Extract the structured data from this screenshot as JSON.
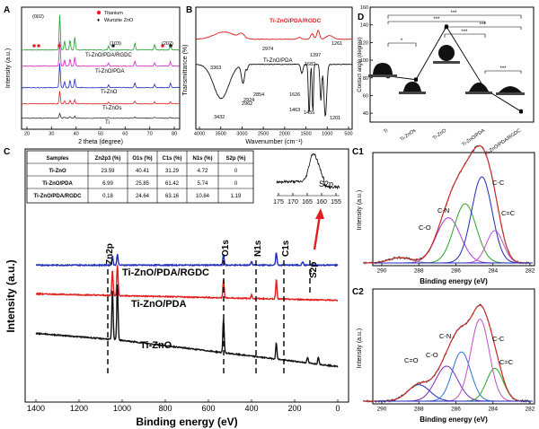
{
  "panels": {
    "A": {
      "label": "A",
      "xlabel": "2 theta (degree)",
      "ylabel": "Intensity (a.u.)",
      "xticks": [
        "20",
        "30",
        "40",
        "50",
        "60",
        "70",
        "80"
      ],
      "legend": [
        {
          "label": "Titanium",
          "color": "#e8212a"
        },
        {
          "label": "Wurtzite ZnO",
          "color": "#222222"
        }
      ],
      "peak_labels": [
        "(002)",
        "(103)",
        "(202)"
      ],
      "series": [
        {
          "name": "Ti-ZnO/PDA/RGDC",
          "color": "#1a9e2c"
        },
        {
          "name": "Ti-ZnO/PDA",
          "color": "#d31fc3"
        },
        {
          "name": "Ti-ZnO",
          "color": "#1c2bb8"
        },
        {
          "name": "Ti-ZnOs",
          "color": "#e01e1e"
        },
        {
          "name": "Ti",
          "color": "#333333"
        }
      ]
    },
    "B": {
      "label": "B",
      "xlabel": "Wavenumber (cm⁻¹)",
      "ylabel": "Transmittance (%)",
      "xticks": [
        "4000",
        "3500",
        "3000",
        "2500",
        "2000",
        "1500",
        "1000",
        "500"
      ],
      "series": [
        {
          "name": "Ti-ZnO/PDA/RGDC",
          "color": "#e01e1e"
        },
        {
          "name": "Ti-ZnO/PDA",
          "color": "#111111"
        }
      ],
      "peaks": [
        "3363",
        "2974",
        "1397",
        "1261",
        "1682",
        "3432",
        "2962",
        "2854",
        "2924",
        "1626",
        "1463",
        "1455",
        "1201"
      ]
    },
    "C": {
      "label": "C",
      "xlabel": "Binding energy (eV)",
      "ylabel": "Intensity (a.u.)",
      "xticks": [
        "1400",
        "1200",
        "1000",
        "800",
        "600",
        "400",
        "200",
        "0"
      ],
      "peak_labels": [
        "Zn2p",
        "O1s",
        "N1s",
        "C1s",
        "S2p"
      ],
      "series": [
        {
          "name": "Ti-ZnO/PDA/RGDC",
          "color": "#1c2bb8"
        },
        {
          "name": "Ti-ZnO/PDA",
          "color": "#e01e1e"
        },
        {
          "name": "Ti-ZnO",
          "color": "#111111"
        }
      ],
      "table": {
        "headers": [
          "Samples",
          "Zn2p3 (%)",
          "O1s (%)",
          "C1s (%)",
          "N1s (%)",
          "S2p (%)"
        ],
        "rows": [
          [
            "Ti-ZnO",
            "23.59",
            "40.41",
            "31.29",
            "4.72",
            "0"
          ],
          [
            "Ti-ZnO/PDA",
            "6.99",
            "25.85",
            "61.42",
            "5.74",
            "0"
          ],
          [
            "Ti-ZnO/PDA/RGDC",
            "0.18",
            "24.64",
            "63.16",
            "10.84",
            "1.19"
          ]
        ]
      },
      "inset": {
        "label": "S2p",
        "xticks": [
          "175",
          "170",
          "165",
          "160",
          "155"
        ]
      }
    },
    "D": {
      "label": "D",
      "ylabel": "Contact angle (degree)",
      "yticks": [
        "40",
        "60",
        "80",
        "100",
        "120",
        "140",
        "160"
      ],
      "categories": [
        "Ti",
        "Ti-ZnOs",
        "Ti-ZnO",
        "Ti-ZnO/PDA",
        "Ti-ZnO/PDA/RGDC"
      ],
      "significance": [
        "***",
        "***",
        "***",
        "***",
        "*",
        "***"
      ]
    },
    "C1": {
      "label": "C1",
      "xlabel": "Binding energy (eV)",
      "ylabel": "Intensity (a.u.)",
      "xticks": [
        "290",
        "288",
        "286",
        "284",
        "282"
      ],
      "components": [
        "C-O",
        "C-N",
        "C-C",
        "C=C"
      ]
    },
    "C2": {
      "label": "C2",
      "xlabel": "Binding energy (eV)",
      "ylabel": "Intensity (a.u.)",
      "xticks": [
        "290",
        "288",
        "286",
        "284",
        "282"
      ],
      "components": [
        "C=O",
        "C-O",
        "C-N",
        "C-C",
        "C=C"
      ]
    }
  },
  "chart_data": [
    {
      "type": "line",
      "title": "",
      "xlabel": "2 theta (degree)",
      "ylabel": "Intensity (a.u.)",
      "xlim": [
        20,
        80
      ],
      "series": [
        {
          "name": "Ti-ZnO/PDA/RGDC"
        },
        {
          "name": "Ti-ZnO/PDA"
        },
        {
          "name": "Ti-ZnO"
        },
        {
          "name": "Ti-ZnOs"
        },
        {
          "name": "Ti"
        }
      ]
    },
    {
      "type": "line",
      "title": "",
      "xlabel": "Wavenumber (cm⁻¹)",
      "ylabel": "Transmittance (%)",
      "xlim": [
        4000,
        500
      ],
      "series": [
        {
          "name": "Ti-ZnO/PDA/RGDC"
        },
        {
          "name": "Ti-ZnO/PDA"
        }
      ]
    },
    {
      "type": "scatter",
      "title": "",
      "ylabel": "Contact angle (degree)",
      "ylim": [
        30,
        160
      ],
      "categories": [
        "Ti",
        "Ti-ZnOs",
        "Ti-ZnO",
        "Ti-ZnO/PDA",
        "Ti-ZnO/PDA/RGDC"
      ],
      "values": [
        82,
        78,
        138,
        67,
        42
      ]
    },
    {
      "type": "line",
      "title": "",
      "xlabel": "Binding energy (eV)",
      "ylabel": "Intensity (a.u.)",
      "xlim": [
        1400,
        0
      ],
      "series": [
        {
          "name": "Ti-ZnO/PDA/RGDC"
        },
        {
          "name": "Ti-ZnO/PDA"
        },
        {
          "name": "Ti-ZnO"
        }
      ]
    },
    {
      "type": "line",
      "title": "",
      "xlabel": "Binding energy (eV)",
      "ylabel": "Intensity (a.u.)",
      "xlim": [
        291,
        282
      ]
    },
    {
      "type": "line",
      "title": "",
      "xlabel": "Binding energy (eV)",
      "ylabel": "Intensity (a.u.)",
      "xlim": [
        291,
        282
      ]
    }
  ]
}
